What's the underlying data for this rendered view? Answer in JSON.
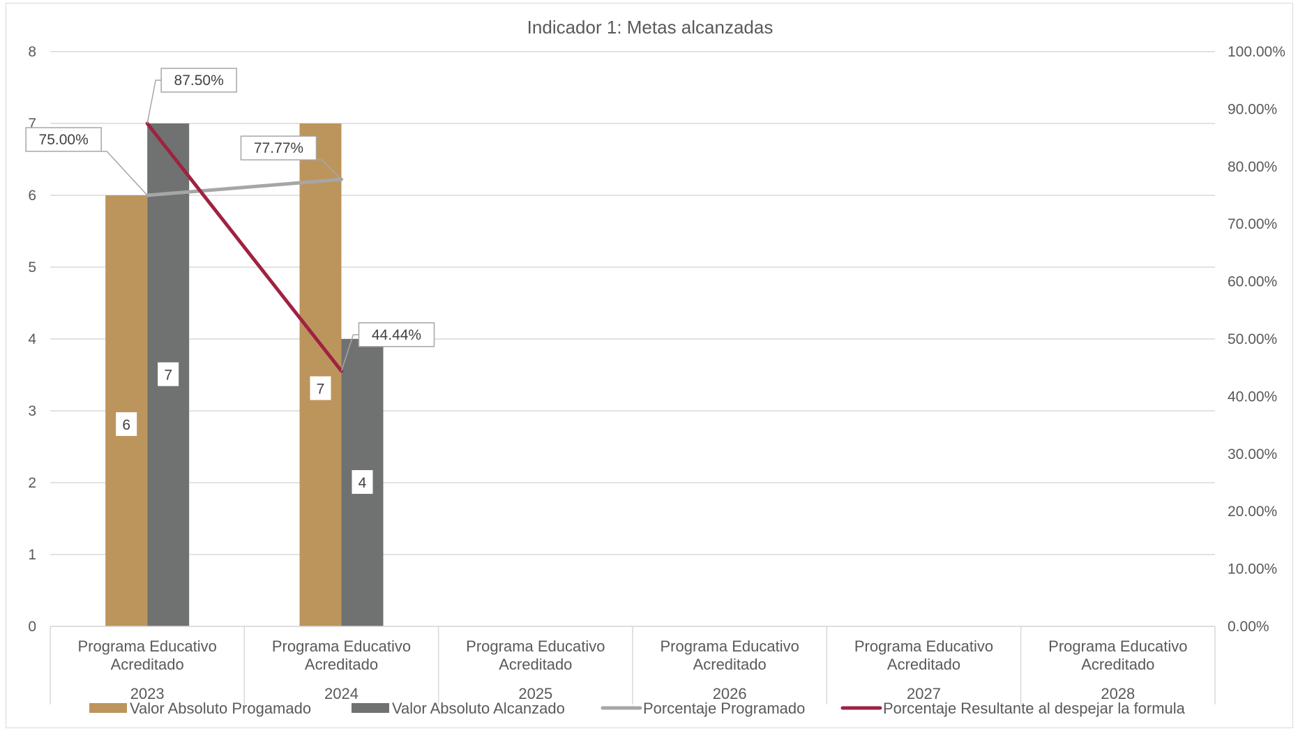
{
  "chart_data": {
    "type": "bar",
    "title": "Indicador 1: Metas alcanzadas",
    "categories": [
      {
        "label_line1": "Programa Educativo",
        "label_line2": "Acreditado",
        "year": "2023"
      },
      {
        "label_line1": "Programa Educativo",
        "label_line2": "Acreditado",
        "year": "2024"
      },
      {
        "label_line1": "Programa Educativo",
        "label_line2": "Acreditado",
        "year": "2025"
      },
      {
        "label_line1": "Programa Educativo",
        "label_line2": "Acreditado",
        "year": "2026"
      },
      {
        "label_line1": "Programa Educativo",
        "label_line2": "Acreditado",
        "year": "2027"
      },
      {
        "label_line1": "Programa Educativo",
        "label_line2": "Acreditado",
        "year": "2028"
      }
    ],
    "ylim": [
      0,
      8
    ],
    "yticks": [
      "0",
      "1",
      "2",
      "3",
      "4",
      "5",
      "6",
      "7",
      "8"
    ],
    "y2lim": [
      0,
      100
    ],
    "y2ticks": [
      "0.00%",
      "10.00%",
      "20.00%",
      "30.00%",
      "40.00%",
      "50.00%",
      "60.00%",
      "70.00%",
      "80.00%",
      "90.00%",
      "100.00%"
    ],
    "grid": true,
    "legend_position": "bottom",
    "series": [
      {
        "name": "Valor Absoluto Progamado",
        "kind": "bar",
        "axis": "primary",
        "color": "#bc955c",
        "values": [
          6,
          7,
          null,
          null,
          null,
          null
        ],
        "labels": [
          "6",
          "7",
          "",
          "",
          "",
          ""
        ]
      },
      {
        "name": "Valor Absoluto Alcanzado",
        "kind": "bar",
        "axis": "primary",
        "color": "#6f7271",
        "values": [
          7,
          4,
          null,
          null,
          null,
          null
        ],
        "labels": [
          "7",
          "4",
          "",
          "",
          "",
          ""
        ]
      },
      {
        "name": "Porcentaje Programado",
        "kind": "line",
        "axis": "secondary",
        "color": "#a6a6a6",
        "values": [
          75.0,
          77.77,
          null,
          null,
          null,
          null
        ],
        "labels": [
          "75.00%",
          "77.77%",
          "",
          "",
          "",
          ""
        ]
      },
      {
        "name": "Porcentaje Resultante al despejar la formula",
        "kind": "line",
        "axis": "secondary",
        "color": "#9f2241",
        "values": [
          87.5,
          44.44,
          null,
          null,
          null,
          null
        ],
        "labels": [
          "87.50%",
          "44.44%",
          "",
          "",
          "",
          ""
        ]
      }
    ]
  }
}
